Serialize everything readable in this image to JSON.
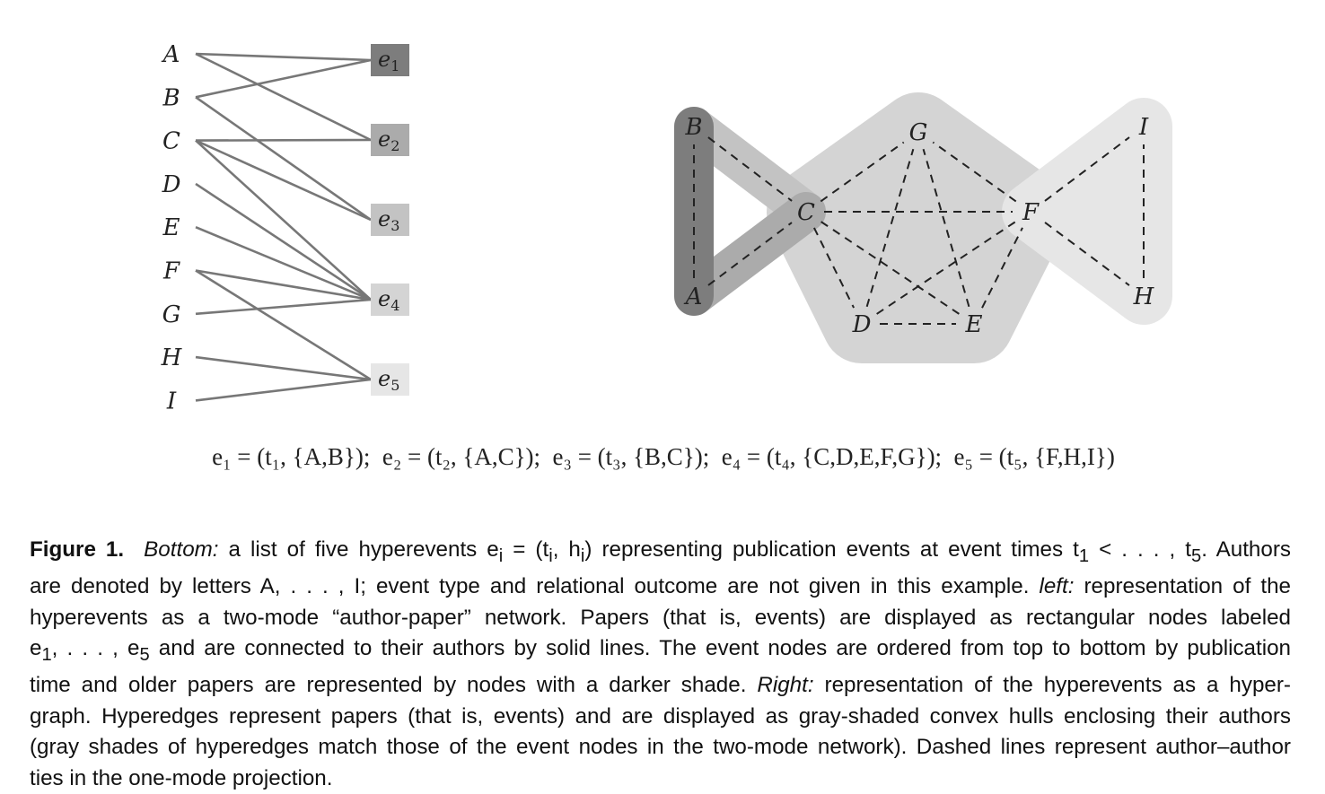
{
  "bipartite": {
    "authors": [
      "A",
      "B",
      "C",
      "D",
      "E",
      "F",
      "G",
      "H",
      "I"
    ],
    "events": [
      {
        "label": "e1",
        "base": "e",
        "sub": "1",
        "shade": "#7d7d7d"
      },
      {
        "label": "e2",
        "base": "e",
        "sub": "2",
        "shade": "#ababab"
      },
      {
        "label": "e3",
        "base": "e",
        "sub": "3",
        "shade": "#c3c3c3"
      },
      {
        "label": "e4",
        "base": "e",
        "sub": "4",
        "shade": "#d4d4d4"
      },
      {
        "label": "e5",
        "base": "e",
        "sub": "5",
        "shade": "#e6e6e6"
      }
    ],
    "edges": [
      [
        "A",
        "e1"
      ],
      [
        "A",
        "e2"
      ],
      [
        "B",
        "e1"
      ],
      [
        "B",
        "e3"
      ],
      [
        "C",
        "e2"
      ],
      [
        "C",
        "e3"
      ],
      [
        "C",
        "e4"
      ],
      [
        "D",
        "e4"
      ],
      [
        "E",
        "e4"
      ],
      [
        "F",
        "e4"
      ],
      [
        "F",
        "e5"
      ],
      [
        "G",
        "e4"
      ],
      [
        "H",
        "e5"
      ],
      [
        "I",
        "e5"
      ]
    ]
  },
  "hypergraph": {
    "nodes": [
      "A",
      "B",
      "C",
      "D",
      "E",
      "F",
      "G",
      "H",
      "I"
    ],
    "hyperedges": [
      {
        "event": "e4",
        "members": [
          "C",
          "D",
          "E",
          "F",
          "G"
        ],
        "shade": "#d4d4d4"
      },
      {
        "event": "e5",
        "members": [
          "F",
          "H",
          "I"
        ],
        "shade": "#e6e6e6"
      },
      {
        "event": "e3",
        "members": [
          "B",
          "C"
        ],
        "shade": "#c3c3c3"
      },
      {
        "event": "e2",
        "members": [
          "A",
          "C"
        ],
        "shade": "#ababab"
      },
      {
        "event": "e1",
        "members": [
          "A",
          "B"
        ],
        "shade": "#7d7d7d"
      }
    ],
    "ties": [
      [
        "A",
        "B"
      ],
      [
        "A",
        "C"
      ],
      [
        "B",
        "C"
      ],
      [
        "C",
        "D"
      ],
      [
        "C",
        "E"
      ],
      [
        "C",
        "F"
      ],
      [
        "C",
        "G"
      ],
      [
        "D",
        "E"
      ],
      [
        "D",
        "F"
      ],
      [
        "D",
        "G"
      ],
      [
        "E",
        "F"
      ],
      [
        "E",
        "G"
      ],
      [
        "F",
        "G"
      ],
      [
        "F",
        "H"
      ],
      [
        "F",
        "I"
      ],
      [
        "H",
        "I"
      ]
    ]
  },
  "equation": "e₁ = (t₁, {A,B});  e₂ = (t₂, {A,C});  e₃ = (t₃, {B,C});  e₄ = (t₄, {C,D,E,F,G});  e₅ = (t₅, {F,H,I})",
  "caption": {
    "label": "Figure 1.",
    "bottom_label": "Bottom:",
    "text1": " a list of five hyperevents e",
    "text1_sub": "i",
    "text2": " = (t",
    "text2_sub": "i",
    "text3": ", h",
    "text3_sub": "i",
    "text4": ") representing publication events at event times t",
    "text4_sub": "1",
    "text5": " < . . . , t",
    "text5_sub": "5",
    "text6": ". Authors",
    "line2_a": "are denoted by letters A, . . . , I; event type and relational outcome are not given in this example. ",
    "left_label": "left:",
    "line2_b": " representation of the",
    "line3": "hyperevents as a two-mode “author-paper” network. Papers (that is, events) are displayed as rectangular nodes labeled",
    "line4_a": "e",
    "line4_sub1": "1",
    "line4_b": ", . . . , e",
    "line4_sub2": "5",
    "line4_c": " and are connected to their authors by solid lines. The event nodes are ordered from top to bottom by publication",
    "line5_a": "time and older papers are represented by nodes with a darker shade. ",
    "right_label": "Right:",
    "line5_b": " representation of the hyperevents as a hyper-",
    "line6": "graph. Hyperedges represent papers (that is, events) and are displayed as gray-shaded convex hulls enclosing their authors",
    "line7": "(gray shades of hyperedges match those of the event nodes in the two-mode network). Dashed lines represent author–author",
    "line8": "ties in the one-mode projection."
  },
  "colors": {
    "edge": "#777777",
    "tie": "#222222",
    "text": "#222222"
  }
}
